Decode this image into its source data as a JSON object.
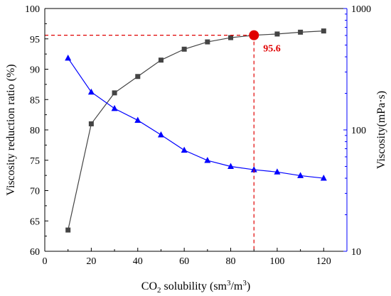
{
  "chart_data": {
    "type": "line",
    "x": [
      10,
      20,
      30,
      40,
      50,
      60,
      70,
      80,
      90,
      100,
      110,
      120
    ],
    "xlabel": {
      "base": "CO",
      "sub": "2",
      "rest": " solubility (sm",
      "sup1": "3",
      "mid": "/m",
      "sup2": "3",
      "end": ")"
    },
    "xlim": [
      0,
      130
    ],
    "xticks": [
      0,
      20,
      40,
      60,
      80,
      100,
      120
    ],
    "ylabel_left": "Viscosity reduction ratio (%)",
    "ylim_left": [
      60,
      100
    ],
    "yticks_left": [
      60,
      65,
      70,
      75,
      80,
      85,
      90,
      95,
      100
    ],
    "ylabel_right": "Viscosity(mPa·s)",
    "ylim_right": [
      10,
      1000
    ],
    "yticks_right": [
      10,
      100,
      1000
    ],
    "right_scale": "log",
    "series": [
      {
        "axis": "left",
        "marker": "square",
        "color": "#444444",
        "values": [
          63.5,
          81.0,
          86.1,
          88.8,
          91.5,
          93.3,
          94.5,
          95.2,
          95.6,
          95.8,
          96.1,
          96.3
        ]
      },
      {
        "axis": "right",
        "marker": "triangle",
        "color": "#0000ff",
        "values": [
          390,
          205,
          150,
          120,
          91,
          68,
          56,
          50,
          47,
          45,
          42,
          40
        ]
      }
    ],
    "highlight": {
      "x": 90,
      "y": 95.6,
      "label": "95.6",
      "color": "#e00000"
    },
    "grid": false
  }
}
